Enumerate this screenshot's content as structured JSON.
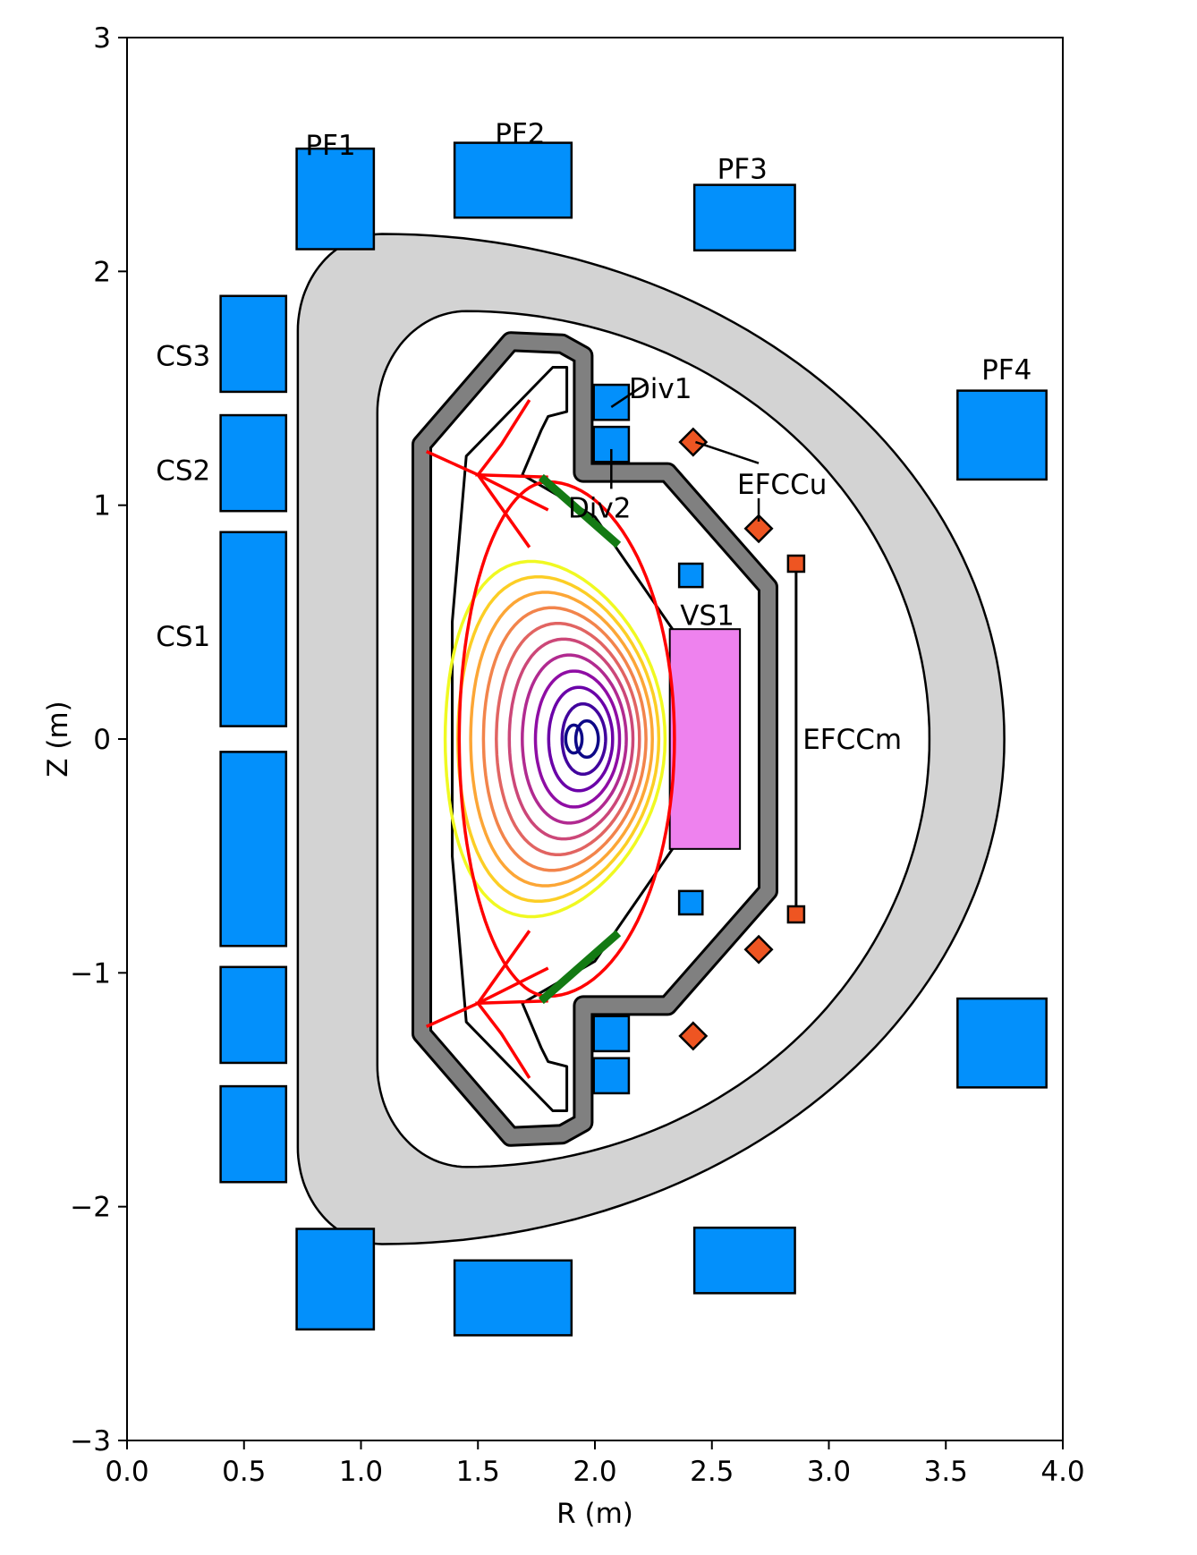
{
  "chart_data": {
    "type": "diagram",
    "xlabel": "R (m)",
    "ylabel": "Z (m)",
    "xlim": [
      0.0,
      4.0
    ],
    "ylim": [
      -3,
      3
    ],
    "xticks": [
      "0.0",
      "0.5",
      "1.0",
      "1.5",
      "2.0",
      "2.5",
      "3.0",
      "3.5",
      "4.0"
    ],
    "yticks": [
      "3",
      "2",
      "1",
      "0",
      "−1",
      "−2",
      "−3"
    ],
    "coil_color": "#0390fb",
    "efcc_color": "#ee5522",
    "passive_color": "#ee82ee",
    "vessel_color": "#d3d3d3",
    "wall_color": "#808080",
    "separatrix_color": "#ff0000",
    "strike_color": "#137a13",
    "coils": [
      {
        "name": "PF1",
        "r": 0.89,
        "z": 2.31,
        "w": 0.33,
        "h": 0.43
      },
      {
        "name": "",
        "r": 0.89,
        "z": -2.31,
        "w": 0.33,
        "h": 0.43
      },
      {
        "name": "PF2",
        "r": 1.65,
        "z": 2.39,
        "w": 0.5,
        "h": 0.32
      },
      {
        "name": "",
        "r": 1.65,
        "z": -2.39,
        "w": 0.5,
        "h": 0.32
      },
      {
        "name": "PF3",
        "r": 2.64,
        "z": 2.23,
        "w": 0.43,
        "h": 0.28
      },
      {
        "name": "",
        "r": 2.64,
        "z": -2.23,
        "w": 0.43,
        "h": 0.28
      },
      {
        "name": "PF4",
        "r": 3.74,
        "z": 1.3,
        "w": 0.38,
        "h": 0.38
      },
      {
        "name": "",
        "r": 3.74,
        "z": -1.3,
        "w": 0.38,
        "h": 0.38
      },
      {
        "name": "CS3",
        "r": 0.54,
        "z": 1.69,
        "w": 0.28,
        "h": 0.41
      },
      {
        "name": "CS2",
        "r": 0.54,
        "z": 1.18,
        "w": 0.28,
        "h": 0.41
      },
      {
        "name": "CS1",
        "r": 0.54,
        "z": 0.47,
        "w": 0.28,
        "h": 0.83
      },
      {
        "name": "",
        "r": 0.54,
        "z": -0.47,
        "w": 0.28,
        "h": 0.83
      },
      {
        "name": "",
        "r": 0.54,
        "z": -1.18,
        "w": 0.28,
        "h": 0.41
      },
      {
        "name": "",
        "r": 0.54,
        "z": -1.69,
        "w": 0.28,
        "h": 0.41
      },
      {
        "name": "Div1",
        "r": 2.07,
        "z": 1.44,
        "w": 0.15,
        "h": 0.15
      },
      {
        "name": "Div2",
        "r": 2.07,
        "z": 1.26,
        "w": 0.15,
        "h": 0.15
      },
      {
        "name": "",
        "r": 2.07,
        "z": -1.26,
        "w": 0.15,
        "h": 0.15
      },
      {
        "name": "",
        "r": 2.07,
        "z": -1.44,
        "w": 0.15,
        "h": 0.15
      },
      {
        "name": "VS1",
        "r": 2.41,
        "z": 0.7,
        "w": 0.1,
        "h": 0.1
      },
      {
        "name": "",
        "r": 2.41,
        "z": -0.7,
        "w": 0.1,
        "h": 0.1
      }
    ],
    "efcc": [
      {
        "name": "EFCCu",
        "r": 2.42,
        "z": 1.27,
        "shape": "diamond"
      },
      {
        "name": "",
        "r": 2.7,
        "z": 0.9,
        "shape": "diamond"
      },
      {
        "name": "",
        "r": 2.7,
        "z": -0.9,
        "shape": "diamond"
      },
      {
        "name": "",
        "r": 2.42,
        "z": -1.27,
        "shape": "diamond"
      },
      {
        "name": "EFCCm",
        "r": 2.86,
        "z": 0.75,
        "shape": "square"
      },
      {
        "name": "",
        "r": 2.86,
        "z": -0.75,
        "shape": "square"
      }
    ],
    "passive_plate": {
      "r0": 2.32,
      "r1": 2.62,
      "z0": -0.47,
      "z1": 0.47
    },
    "labels": [
      {
        "text": "PF1",
        "r": 0.87,
        "z": 2.54
      },
      {
        "text": "PF2",
        "r": 1.68,
        "z": 2.59
      },
      {
        "text": "PF3",
        "r": 2.63,
        "z": 2.44
      },
      {
        "text": "PF4",
        "r": 3.76,
        "z": 1.58
      },
      {
        "text": "CS3",
        "r": 0.24,
        "z": 1.64
      },
      {
        "text": "CS2",
        "r": 0.24,
        "z": 1.15
      },
      {
        "text": "CS1",
        "r": 0.24,
        "z": 0.44
      },
      {
        "text": "Div1",
        "r": 2.28,
        "z": 1.5
      },
      {
        "text": "Div2",
        "r": 2.02,
        "z": 0.99
      },
      {
        "text": "EFCCu",
        "r": 2.8,
        "z": 1.09
      },
      {
        "text": "VS1",
        "r": 2.48,
        "z": 0.53
      },
      {
        "text": "EFCCm",
        "r": 3.1,
        "z": 0.0
      }
    ],
    "flux_surfaces": {
      "r0": 1.9,
      "z0": 0.0,
      "count": 11,
      "max_ra": 0.47,
      "max_rb": 0.76,
      "colors": [
        "#0d0887",
        "#41049d",
        "#6a00a8",
        "#8f0da4",
        "#b12a90",
        "#cc4778",
        "#e16462",
        "#f2844b",
        "#fca636",
        "#fcce25",
        "#f0f921"
      ]
    }
  }
}
